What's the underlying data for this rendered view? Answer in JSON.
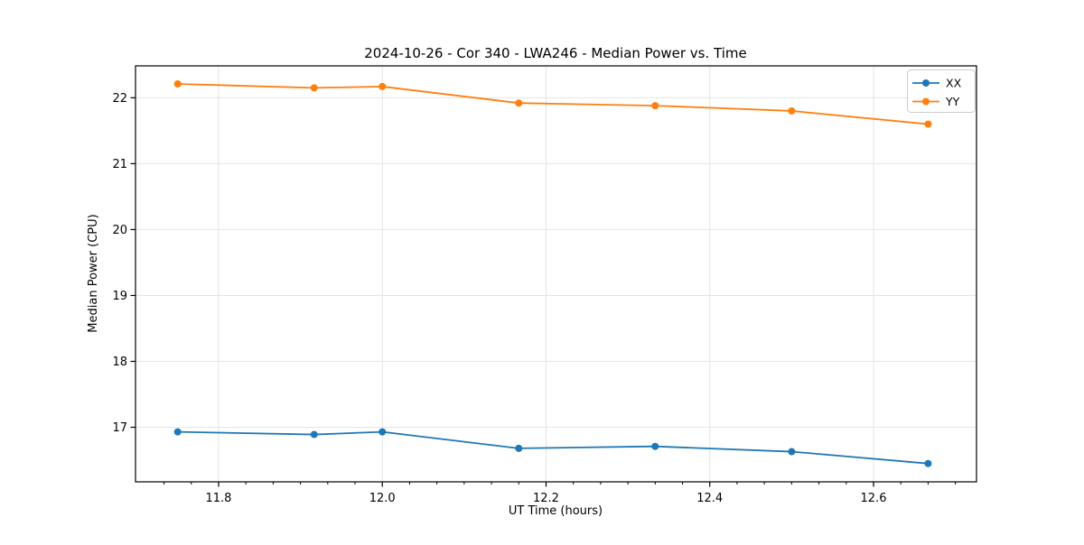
{
  "figure": {
    "background": "#ffffff",
    "plot_bg": "#ffffff",
    "spine_color": "#000000",
    "grid_color": "#e4e4e4"
  },
  "chart_data": {
    "type": "line",
    "title": "2024-10-26 - Cor 340 - LWA246 - Median Power vs. Time",
    "xlabel": "UT Time (hours)",
    "ylabel": "Median Power (CPU)",
    "x": [
      11.75,
      11.9167,
      12.0,
      12.1667,
      12.3333,
      12.5,
      12.6667
    ],
    "series": [
      {
        "name": "XX",
        "color": "#1f77b4",
        "values": [
          16.93,
          16.89,
          16.93,
          16.68,
          16.71,
          16.63,
          16.45
        ]
      },
      {
        "name": "YY",
        "color": "#ff7f0e",
        "values": [
          22.21,
          22.15,
          22.17,
          21.92,
          21.88,
          21.8,
          21.6
        ]
      }
    ],
    "xlim": [
      11.6985,
      12.7258
    ],
    "ylim": [
      16.172,
      22.484
    ],
    "xticks": [
      11.8,
      12.0,
      12.2,
      12.4,
      12.6
    ],
    "xtick_labels": [
      "11.8",
      "12.0",
      "12.2",
      "12.4",
      "12.6"
    ],
    "yticks": [
      17,
      18,
      19,
      20,
      21,
      22
    ],
    "ytick_labels": [
      "17",
      "18",
      "19",
      "20",
      "21",
      "22"
    ],
    "x_minor_step": 0.0333333,
    "grid": true,
    "legend_position": "upper right",
    "marker": "circle",
    "marker_radius": 4,
    "line_width": 1.8
  }
}
